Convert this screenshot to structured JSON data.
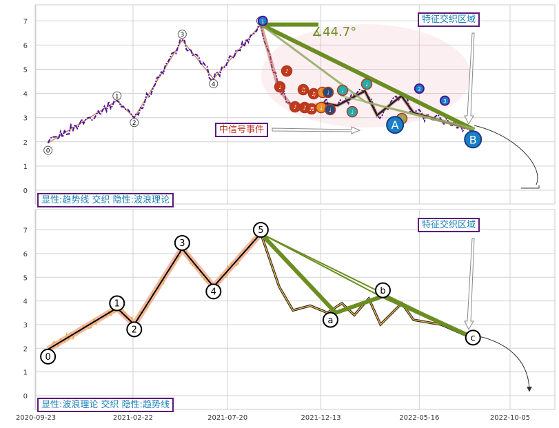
{
  "chart_data": [
    {
      "type": "line",
      "panel": "top",
      "ylim": [
        -0.5,
        7.6
      ],
      "yticks": [
        0,
        1,
        2,
        3,
        4,
        5,
        6,
        7
      ],
      "grid": true,
      "annotation_box": "显性:趋势线 交织 隐性:波浪理论",
      "region_label": "特征交织区域",
      "signal_label": "中信号事件",
      "angle_label": "∡44.7°",
      "wave_points": [
        {
          "label": "0",
          "date": "2020-10-12",
          "value": 1.95
        },
        {
          "label": "1",
          "date": "2021-01-28",
          "value": 3.7
        },
        {
          "label": "2",
          "date": "2021-02-24",
          "value": 3.0
        },
        {
          "label": "3",
          "date": "2021-05-10",
          "value": 6.2
        },
        {
          "label": "4",
          "date": "2021-06-28",
          "value": 4.6
        },
        {
          "label": "5",
          "date": "2021-09-10",
          "value": 6.85
        }
      ],
      "circle_markers": [
        {
          "label": "0",
          "date": "2020-10-12",
          "value": 1.65
        },
        {
          "label": "1",
          "date": "2021-01-28",
          "value": 3.9
        },
        {
          "label": "2",
          "date": "2021-02-24",
          "value": 2.8
        },
        {
          "label": "3",
          "date": "2021-05-10",
          "value": 6.45
        },
        {
          "label": "4",
          "date": "2021-06-28",
          "value": 4.4
        },
        {
          "label": "5",
          "date": "2021-09-10",
          "value": 7.0
        }
      ],
      "big_markers": [
        {
          "label": "A",
          "date": "2022-04-08",
          "value": 2.7
        },
        {
          "label": "B",
          "date": "2022-08-08",
          "value": 2.1
        }
      ],
      "small_blue_markers": [
        {
          "label": "1",
          "date": "2021-09-13",
          "value": 7.0
        },
        {
          "label": "2",
          "date": "2022-05-16",
          "value": 4.2
        },
        {
          "label": "3",
          "date": "2022-06-25",
          "value": 3.7
        }
      ],
      "trendlines": [
        {
          "from": {
            "date": "2021-09-10",
            "value": 6.85
          },
          "to": {
            "date": "2022-08-08",
            "value": 2.5
          },
          "color": "#6b8e23",
          "weight": "thick"
        },
        {
          "from": {
            "date": "2021-09-10",
            "value": 6.85
          },
          "to": {
            "date": "2021-12-01",
            "value": 6.85
          },
          "color": "#6b8e23",
          "weight": "thick"
        },
        {
          "from": {
            "date": "2021-09-10",
            "value": 6.85
          },
          "to": {
            "date": "2022-08-08",
            "value": 2.5
          },
          "color": "#8ca35a",
          "weight": "thin"
        }
      ]
    },
    {
      "type": "line",
      "panel": "bottom",
      "ylim": [
        -0.5,
        7.6
      ],
      "yticks": [
        0,
        1,
        2,
        3,
        4,
        5,
        6,
        7
      ],
      "grid": true,
      "annotation_box": "显性:波浪理论 交织 隐性:趋势线",
      "region_label": "特征交织区域",
      "xticks": [
        "2020-09-23",
        "2021-02-22",
        "2021-07-20",
        "2021-12-13",
        "2022-05-16",
        "2022-10-05"
      ],
      "wave_points": [
        {
          "label": "0",
          "date": "2020-10-12",
          "value": 1.95
        },
        {
          "label": "1",
          "date": "2021-01-28",
          "value": 3.7
        },
        {
          "label": "2",
          "date": "2021-02-24",
          "value": 3.0
        },
        {
          "label": "3",
          "date": "2021-05-10",
          "value": 6.2
        },
        {
          "label": "4",
          "date": "2021-06-28",
          "value": 4.6
        },
        {
          "label": "5",
          "date": "2021-09-10",
          "value": 6.85
        },
        {
          "label": "a",
          "date": "2022-01-05",
          "value": 3.5
        },
        {
          "label": "b",
          "date": "2022-03-20",
          "value": 4.2
        },
        {
          "label": "c",
          "date": "2022-08-08",
          "value": 2.45
        }
      ],
      "circle_markers": [
        {
          "label": "0",
          "date": "2020-10-12",
          "value": 1.65
        },
        {
          "label": "1",
          "date": "2021-01-28",
          "value": 3.9
        },
        {
          "label": "2",
          "date": "2021-02-24",
          "value": 2.8
        },
        {
          "label": "3",
          "date": "2021-05-10",
          "value": 6.45
        },
        {
          "label": "4",
          "date": "2021-06-28",
          "value": 4.4
        },
        {
          "label": "5",
          "date": "2021-09-10",
          "value": 7.0
        },
        {
          "label": "a",
          "date": "2021-12-28",
          "value": 3.2
        },
        {
          "label": "b",
          "date": "2022-03-20",
          "value": 4.45
        },
        {
          "label": "c",
          "date": "2022-08-08",
          "value": 2.45
        }
      ]
    }
  ]
}
